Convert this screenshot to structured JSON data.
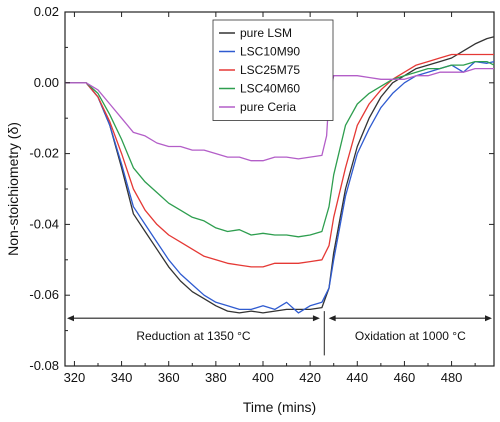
{
  "chart_data": {
    "type": "line",
    "xlabel": "Time (mins)",
    "ylabel": "Non-stoichiometry (δ)",
    "xlim": [
      316,
      498
    ],
    "ylim": [
      -0.08,
      0.02
    ],
    "xticks": [
      320,
      340,
      360,
      380,
      400,
      420,
      440,
      460,
      480
    ],
    "xtick_labels": [
      "320",
      "340",
      "360",
      "380",
      "400",
      "420",
      "440",
      "460",
      "480"
    ],
    "yticks": [
      -0.08,
      -0.06,
      -0.04,
      -0.02,
      0.0,
      0.02
    ],
    "ytick_labels": [
      "-0.08",
      "-0.06",
      "-0.04",
      "-0.02",
      "0.00",
      "0.02"
    ],
    "grid": false,
    "legend_position": "top-center",
    "series": [
      {
        "name": "pure LSM",
        "color": "#333333",
        "x": [
          316,
          325,
          330,
          335,
          340,
          345,
          350,
          355,
          360,
          365,
          370,
          375,
          380,
          385,
          390,
          395,
          400,
          405,
          410,
          415,
          420,
          425,
          428,
          430,
          435,
          440,
          445,
          450,
          455,
          460,
          465,
          470,
          475,
          480,
          485,
          490,
          495,
          498
        ],
        "y": [
          0.0,
          0.0,
          -0.004,
          -0.012,
          -0.024,
          -0.037,
          -0.042,
          -0.047,
          -0.052,
          -0.056,
          -0.059,
          -0.061,
          -0.063,
          -0.0645,
          -0.065,
          -0.0645,
          -0.065,
          -0.0645,
          -0.064,
          -0.064,
          -0.064,
          -0.0635,
          -0.058,
          -0.048,
          -0.03,
          -0.018,
          -0.01,
          -0.004,
          0.0,
          0.002,
          0.004,
          0.005,
          0.006,
          0.007,
          0.009,
          0.011,
          0.0125,
          0.013
        ]
      },
      {
        "name": "LSC10M90",
        "color": "#2f5bd0",
        "x": [
          316,
          325,
          330,
          335,
          340,
          345,
          350,
          355,
          360,
          365,
          370,
          375,
          380,
          385,
          390,
          395,
          400,
          405,
          410,
          415,
          420,
          425,
          428,
          430,
          435,
          440,
          445,
          450,
          455,
          460,
          465,
          470,
          475,
          480,
          485,
          490,
          495,
          498
        ],
        "y": [
          0.0,
          0.0,
          -0.004,
          -0.012,
          -0.023,
          -0.035,
          -0.04,
          -0.045,
          -0.05,
          -0.054,
          -0.057,
          -0.06,
          -0.062,
          -0.063,
          -0.064,
          -0.064,
          -0.063,
          -0.064,
          -0.062,
          -0.065,
          -0.063,
          -0.062,
          -0.058,
          -0.05,
          -0.032,
          -0.02,
          -0.013,
          -0.007,
          -0.003,
          0.0,
          0.002,
          0.003,
          0.004,
          0.005,
          0.003,
          0.006,
          0.0055,
          0.006
        ]
      },
      {
        "name": "LSC25M75",
        "color": "#e53935",
        "x": [
          316,
          325,
          330,
          335,
          340,
          345,
          350,
          355,
          360,
          365,
          370,
          375,
          380,
          385,
          390,
          395,
          400,
          405,
          410,
          415,
          420,
          425,
          428,
          430,
          435,
          440,
          445,
          450,
          455,
          460,
          465,
          470,
          475,
          480,
          485,
          490,
          495,
          498
        ],
        "y": [
          0.0,
          0.0,
          -0.004,
          -0.011,
          -0.02,
          -0.03,
          -0.036,
          -0.04,
          -0.043,
          -0.045,
          -0.047,
          -0.049,
          -0.05,
          -0.051,
          -0.0515,
          -0.052,
          -0.052,
          -0.051,
          -0.051,
          -0.051,
          -0.0505,
          -0.05,
          -0.046,
          -0.038,
          -0.024,
          -0.012,
          -0.006,
          -0.002,
          0.001,
          0.003,
          0.005,
          0.006,
          0.007,
          0.008,
          0.008,
          0.008,
          0.008,
          0.008
        ]
      },
      {
        "name": "LSC40M60",
        "color": "#2e9e4f",
        "x": [
          316,
          325,
          330,
          335,
          340,
          345,
          350,
          355,
          360,
          365,
          370,
          375,
          380,
          385,
          390,
          395,
          400,
          405,
          410,
          415,
          420,
          425,
          428,
          430,
          435,
          440,
          445,
          450,
          455,
          460,
          465,
          470,
          475,
          480,
          485,
          490,
          495,
          498
        ],
        "y": [
          0.0,
          0.0,
          -0.003,
          -0.009,
          -0.016,
          -0.024,
          -0.028,
          -0.031,
          -0.034,
          -0.036,
          -0.038,
          -0.039,
          -0.041,
          -0.042,
          -0.0415,
          -0.043,
          -0.0425,
          -0.043,
          -0.043,
          -0.0435,
          -0.043,
          -0.042,
          -0.035,
          -0.026,
          -0.012,
          -0.006,
          -0.003,
          -0.001,
          0.001,
          0.002,
          0.003,
          0.004,
          0.004,
          0.005,
          0.005,
          0.006,
          0.006,
          0.005
        ]
      },
      {
        "name": "pure Ceria",
        "color": "#b35ec8",
        "x": [
          316,
          325,
          330,
          335,
          340,
          345,
          350,
          355,
          360,
          365,
          370,
          375,
          380,
          385,
          390,
          395,
          400,
          405,
          410,
          415,
          420,
          425,
          427,
          428,
          430,
          435,
          440,
          445,
          450,
          455,
          460,
          465,
          470,
          475,
          480,
          485,
          490,
          495,
          498
        ],
        "y": [
          0.0,
          0.0,
          -0.002,
          -0.006,
          -0.01,
          -0.014,
          -0.015,
          -0.017,
          -0.018,
          -0.018,
          -0.019,
          -0.019,
          -0.02,
          -0.021,
          -0.021,
          -0.022,
          -0.022,
          -0.021,
          -0.021,
          -0.0215,
          -0.021,
          -0.0205,
          -0.015,
          -0.004,
          0.002,
          0.002,
          0.002,
          0.0015,
          0.001,
          0.001,
          0.001,
          0.002,
          0.002,
          0.003,
          0.003,
          0.003,
          0.004,
          0.004,
          0.004
        ]
      }
    ],
    "annotations": [
      {
        "text": "Reduction at 1350 °C",
        "x_start": 316,
        "x_end": 425,
        "y": -0.0665,
        "label_y": -0.0715
      },
      {
        "text": "Oxidation at 1000 °C",
        "x_start": 427,
        "x_end": 498,
        "y": -0.0665,
        "label_y": -0.0715
      }
    ],
    "divider_x": 426
  }
}
